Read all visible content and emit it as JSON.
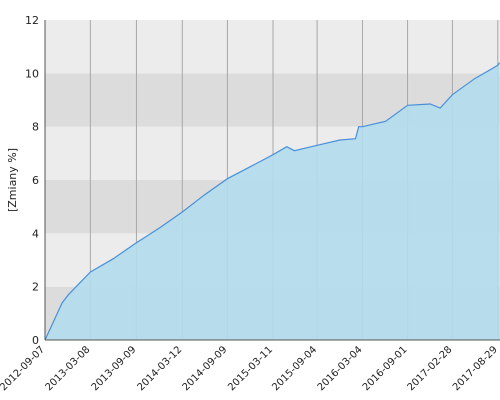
{
  "chart_data": {
    "type": "area",
    "ylabel": "[Zmiany %]",
    "x": [
      "2012-09-07",
      "2012-11-15",
      "2012-12-10",
      "2013-03-08",
      "2013-06-08",
      "2013-09-09",
      "2013-12-10",
      "2014-03-12",
      "2014-06-10",
      "2014-09-09",
      "2014-12-10",
      "2015-03-11",
      "2015-05-05",
      "2015-06-05",
      "2015-09-04",
      "2015-12-05",
      "2016-02-05",
      "2016-02-18",
      "2016-03-04",
      "2016-06-05",
      "2016-09-01",
      "2016-12-01",
      "2017-01-10",
      "2017-02-28",
      "2017-05-28",
      "2017-08-29",
      "2017-09-05"
    ],
    "values": [
      0,
      1.4,
      1.7,
      2.55,
      3.05,
      3.65,
      4.2,
      4.8,
      5.45,
      6.05,
      6.5,
      6.95,
      7.25,
      7.1,
      7.3,
      7.5,
      7.55,
      8.0,
      8.0,
      8.2,
      8.8,
      8.85,
      8.7,
      9.2,
      9.8,
      10.3,
      10.4
    ],
    "color": "#4a90d9",
    "fill": "#b3dcec",
    "xlim": [
      "2012-09-07",
      "2017-09-07"
    ],
    "xticks": [
      "2012-09-07",
      "2013-03-08",
      "2013-09-09",
      "2014-03-12",
      "2014-09-09",
      "2015-03-11",
      "2015-09-04",
      "2016-03-04",
      "2016-09-01",
      "2017-02-28",
      "2017-08-29"
    ],
    "ylim": [
      0,
      12
    ],
    "yticks": [
      0,
      2,
      4,
      6,
      8,
      10,
      12
    ],
    "grid": true
  }
}
